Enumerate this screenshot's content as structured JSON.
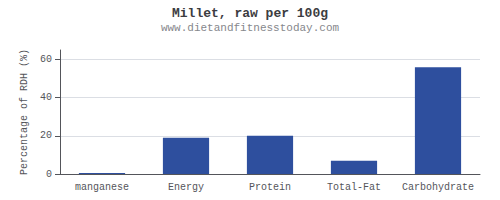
{
  "chart_data": {
    "type": "bar",
    "title": "Millet, raw per 100g",
    "subtitle": "www.dietandfitnesstoday.com",
    "categories": [
      "manganese",
      "Energy",
      "Protein",
      "Total-Fat",
      "Carbohydrate"
    ],
    "values": [
      0.5,
      19.0,
      20.0,
      7.0,
      56.0
    ],
    "color": "#2e4f9e",
    "ylabel": "Percentage of RDH (%)",
    "ylim": [
      0,
      65
    ],
    "yticks": [
      0,
      20,
      40,
      60
    ],
    "grid": true
  }
}
